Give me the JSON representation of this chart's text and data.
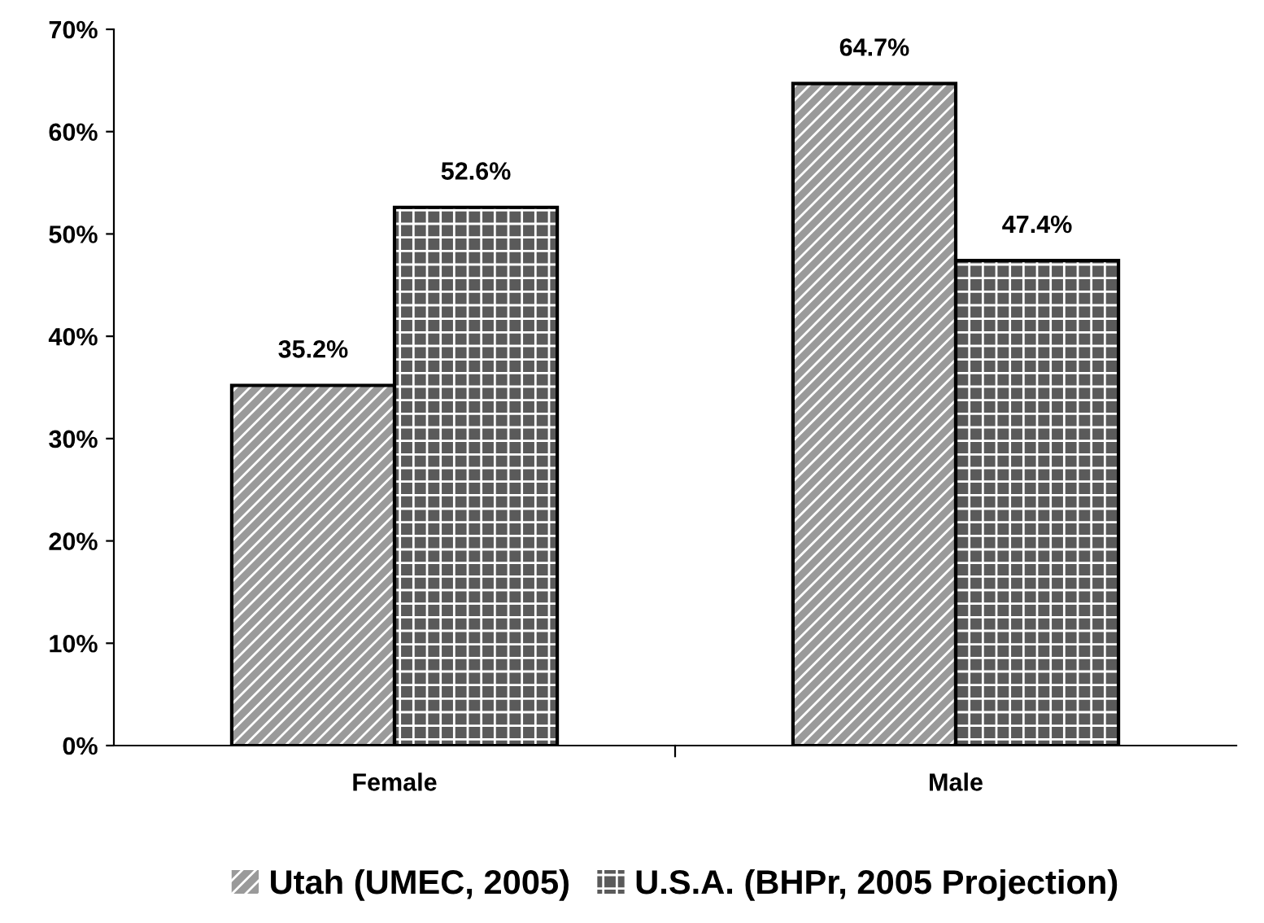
{
  "chart_data": {
    "type": "bar",
    "categories": [
      "Female",
      "Male"
    ],
    "series": [
      {
        "name": "Utah (UMEC, 2005)",
        "color": "#9a9a9a",
        "values": [
          35.2,
          64.7
        ],
        "value_labels": [
          "35.2%",
          "64.7%"
        ]
      },
      {
        "name": "U.S.A. (BHPr, 2005 Projection)",
        "color": "#5a5a5a",
        "values": [
          52.6,
          47.4
        ],
        "value_labels": [
          "52.6%",
          "47.4%"
        ]
      }
    ],
    "ylim": [
      0,
      70
    ],
    "yticks": [
      {
        "value": 0,
        "label": "0%"
      },
      {
        "value": 10,
        "label": "10%"
      },
      {
        "value": 20,
        "label": "20%"
      },
      {
        "value": 30,
        "label": "30%"
      },
      {
        "value": 40,
        "label": "40%"
      },
      {
        "value": 50,
        "label": "50%"
      },
      {
        "value": 60,
        "label": "60%"
      },
      {
        "value": 70,
        "label": "70%"
      }
    ],
    "grid": false,
    "legend": "bottom"
  }
}
